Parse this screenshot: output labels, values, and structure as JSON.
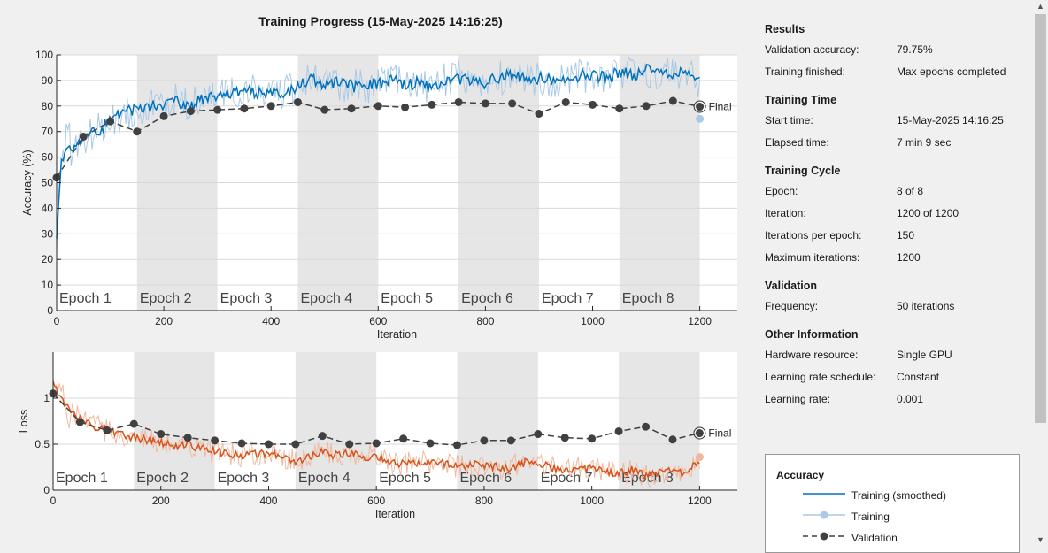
{
  "title": "Training Progress (15-May-2025 14:16:25)",
  "colors": {
    "train_acc": "#0072bd",
    "train_acc_raw": "#a9c9e6",
    "train_loss": "#d95319",
    "train_loss_raw": "#efb9a0",
    "validation": "#404040",
    "shade": "#e6e6e6"
  },
  "epochs": [
    "Epoch 1",
    "Epoch 2",
    "Epoch 3",
    "Epoch 4",
    "Epoch 5",
    "Epoch 6",
    "Epoch 7",
    "Epoch 8"
  ],
  "final_label": "Final",
  "chart_data": [
    {
      "type": "line",
      "ylabel": "Accuracy (%)",
      "xlabel": "Iteration",
      "xlim": [
        0,
        1270
      ],
      "ylim": [
        0,
        100
      ],
      "xticks": [
        0,
        200,
        400,
        600,
        800,
        1000,
        1200
      ],
      "yticks": [
        0,
        10,
        20,
        30,
        40,
        50,
        60,
        70,
        80,
        90,
        100
      ],
      "grid": true,
      "series": [
        {
          "name": "Training (smoothed)",
          "x": [
            0,
            10,
            25,
            50,
            75,
            100,
            125,
            150,
            175,
            200,
            225,
            250,
            275,
            300,
            325,
            350,
            375,
            400,
            425,
            450,
            475,
            500,
            525,
            550,
            575,
            600,
            625,
            650,
            675,
            700,
            725,
            750,
            775,
            800,
            825,
            850,
            875,
            900,
            925,
            950,
            975,
            1000,
            1025,
            1050,
            1075,
            1100,
            1125,
            1150,
            1175,
            1200
          ],
          "values": [
            30,
            60,
            64,
            67,
            70,
            74,
            77,
            79,
            80,
            81,
            82,
            80,
            83,
            84,
            85,
            86,
            85,
            86,
            85,
            88,
            91,
            88,
            89,
            88,
            87,
            89,
            90,
            88,
            89,
            87,
            90,
            91,
            90,
            89,
            91,
            92,
            91,
            91,
            90,
            91,
            92,
            92,
            91,
            93,
            92,
            94,
            93,
            93,
            92,
            89
          ]
        },
        {
          "name": "Training",
          "x": [
            1200
          ],
          "values": [
            75
          ]
        },
        {
          "name": "Validation",
          "x": [
            0,
            50,
            100,
            150,
            200,
            250,
            300,
            350,
            400,
            450,
            500,
            550,
            600,
            650,
            700,
            750,
            800,
            850,
            900,
            950,
            1000,
            1050,
            1100,
            1150,
            1200
          ],
          "values": [
            52,
            68,
            74,
            70,
            76,
            78,
            78.5,
            79,
            80,
            81.5,
            78.5,
            79,
            80,
            79.5,
            80.5,
            81.5,
            81,
            81,
            77,
            81.5,
            80.5,
            79,
            80,
            82,
            79.75
          ]
        }
      ]
    },
    {
      "type": "line",
      "ylabel": "Loss",
      "xlabel": "Iteration",
      "xlim": [
        0,
        1270
      ],
      "ylim": [
        0,
        1.5
      ],
      "xticks": [
        0,
        200,
        400,
        600,
        800,
        1000,
        1200
      ],
      "yticks": [
        0,
        0.5,
        1
      ],
      "grid": true,
      "series": [
        {
          "name": "Training (smoothed)",
          "x": [
            0,
            10,
            25,
            50,
            75,
            100,
            125,
            150,
            175,
            200,
            225,
            250,
            275,
            300,
            325,
            350,
            375,
            400,
            425,
            450,
            475,
            500,
            525,
            550,
            575,
            600,
            625,
            650,
            675,
            700,
            725,
            750,
            775,
            800,
            825,
            850,
            875,
            900,
            925,
            950,
            975,
            1000,
            1025,
            1050,
            1075,
            1100,
            1125,
            1150,
            1175,
            1200
          ],
          "values": [
            1.2,
            1.05,
            0.9,
            0.78,
            0.7,
            0.65,
            0.6,
            0.57,
            0.55,
            0.52,
            0.48,
            0.5,
            0.45,
            0.42,
            0.4,
            0.38,
            0.39,
            0.4,
            0.36,
            0.3,
            0.35,
            0.42,
            0.38,
            0.4,
            0.36,
            0.38,
            0.3,
            0.28,
            0.3,
            0.32,
            0.3,
            0.25,
            0.28,
            0.26,
            0.25,
            0.24,
            0.3,
            0.28,
            0.25,
            0.22,
            0.23,
            0.24,
            0.2,
            0.18,
            0.22,
            0.15,
            0.2,
            0.22,
            0.18,
            0.32
          ]
        },
        {
          "name": "Training",
          "x": [
            1200
          ],
          "values": [
            0.36
          ]
        },
        {
          "name": "Validation",
          "x": [
            0,
            50,
            100,
            150,
            200,
            250,
            300,
            350,
            400,
            450,
            500,
            550,
            600,
            650,
            700,
            750,
            800,
            850,
            900,
            950,
            1000,
            1050,
            1100,
            1150,
            1200
          ],
          "values": [
            1.05,
            0.74,
            0.65,
            0.72,
            0.61,
            0.57,
            0.54,
            0.51,
            0.5,
            0.5,
            0.59,
            0.5,
            0.51,
            0.56,
            0.51,
            0.49,
            0.54,
            0.54,
            0.61,
            0.57,
            0.56,
            0.64,
            0.69,
            0.55,
            0.62
          ]
        }
      ]
    }
  ],
  "panel": {
    "sections": [
      {
        "title": "Results",
        "rows": [
          {
            "k": "Validation accuracy:",
            "v": "79.75%"
          },
          {
            "k": "Training finished:",
            "v": "Max epochs completed"
          }
        ]
      },
      {
        "title": "Training Time",
        "rows": [
          {
            "k": "Start time:",
            "v": "15-May-2025 14:16:25"
          },
          {
            "k": "Elapsed time:",
            "v": "7 min 9 sec"
          }
        ]
      },
      {
        "title": "Training Cycle",
        "rows": [
          {
            "k": "Epoch:",
            "v": "8 of 8"
          },
          {
            "k": "Iteration:",
            "v": "1200 of 1200"
          },
          {
            "k": "Iterations per epoch:",
            "v": "150"
          },
          {
            "k": "Maximum iterations:",
            "v": "1200"
          }
        ]
      },
      {
        "title": "Validation",
        "rows": [
          {
            "k": "Frequency:",
            "v": "50 iterations"
          }
        ]
      },
      {
        "title": "Other Information",
        "rows": [
          {
            "k": "Hardware resource:",
            "v": "Single GPU"
          },
          {
            "k": "Learning rate schedule:",
            "v": "Constant"
          },
          {
            "k": "Learning rate:",
            "v": "0.001"
          }
        ]
      }
    ]
  },
  "legend": {
    "title": "Accuracy",
    "items": [
      {
        "label": "Training (smoothed)"
      },
      {
        "label": "Training"
      },
      {
        "label": "Validation"
      }
    ]
  }
}
